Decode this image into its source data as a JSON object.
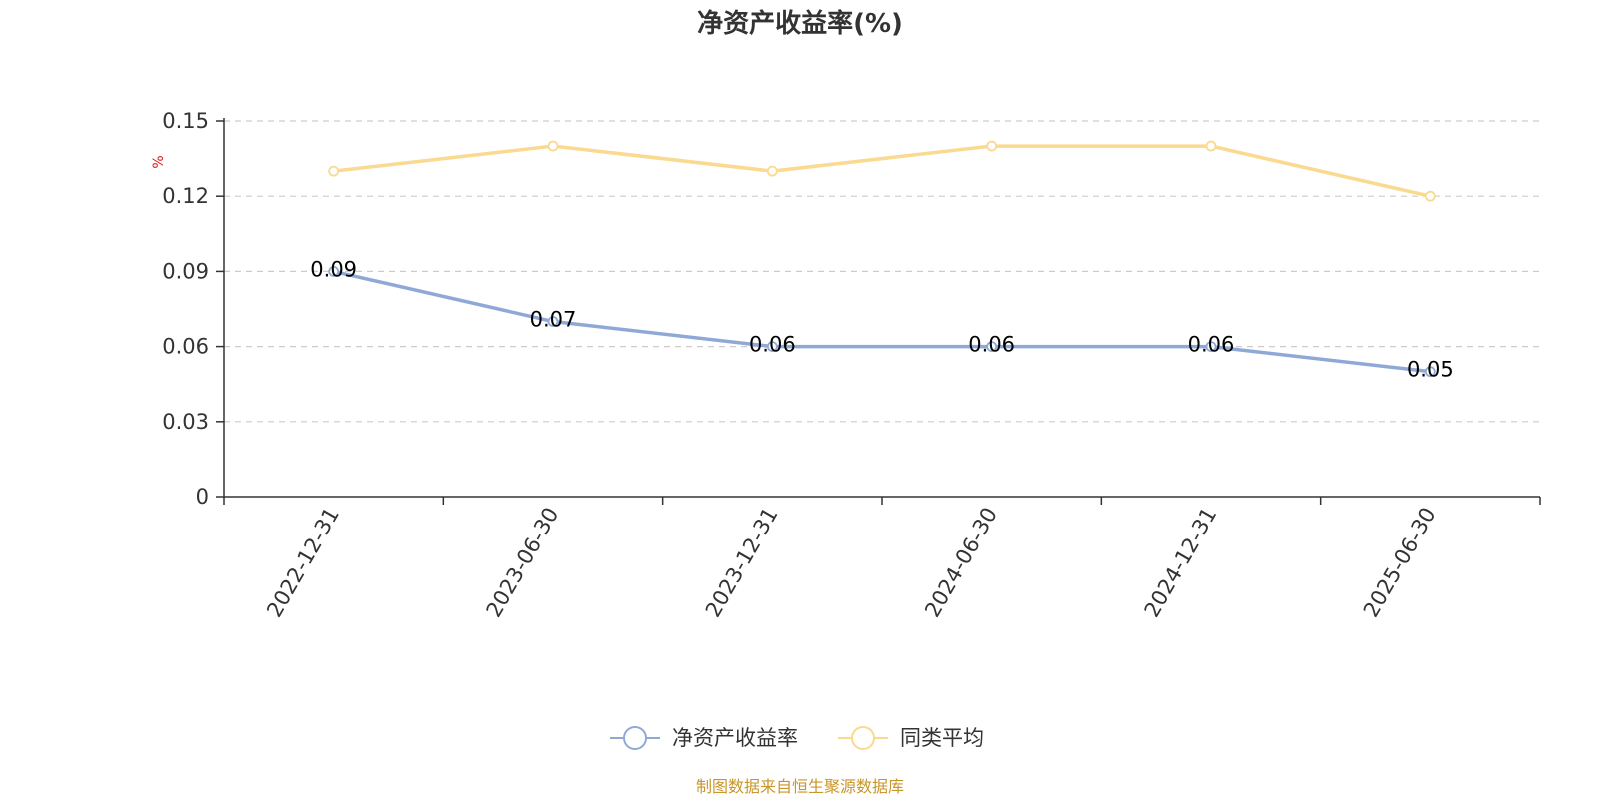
{
  "chart_data": {
    "type": "line",
    "title": "净资产收益率(%)",
    "ylabel": "%",
    "categories": [
      "2022-12-31",
      "2023-06-30",
      "2023-12-31",
      "2024-06-30",
      "2024-12-31",
      "2025-06-30"
    ],
    "yticks": [
      "0",
      "0.03",
      "0.06",
      "0.09",
      "0.12",
      "0.15"
    ],
    "ylim": [
      0,
      0.15
    ],
    "grid": true,
    "legend_position": "bottom-center",
    "series": [
      {
        "name": "净资产收益率",
        "values": [
          0.09,
          0.07,
          0.06,
          0.06,
          0.06,
          0.05
        ],
        "labels": [
          "0.09",
          "0.07",
          "0.06",
          "0.06",
          "0.06",
          "0.05"
        ],
        "color": "#8fa9d6"
      },
      {
        "name": "同类平均",
        "values": [
          0.13,
          0.14,
          0.13,
          0.14,
          0.14,
          0.12
        ],
        "color": "#fad990"
      }
    ]
  },
  "source_text": "制图数据来自恒生聚源数据库",
  "colors": {
    "axis": "#333333",
    "grid": "#cccccc",
    "unit": "#e01818",
    "source": "#c8962a"
  }
}
